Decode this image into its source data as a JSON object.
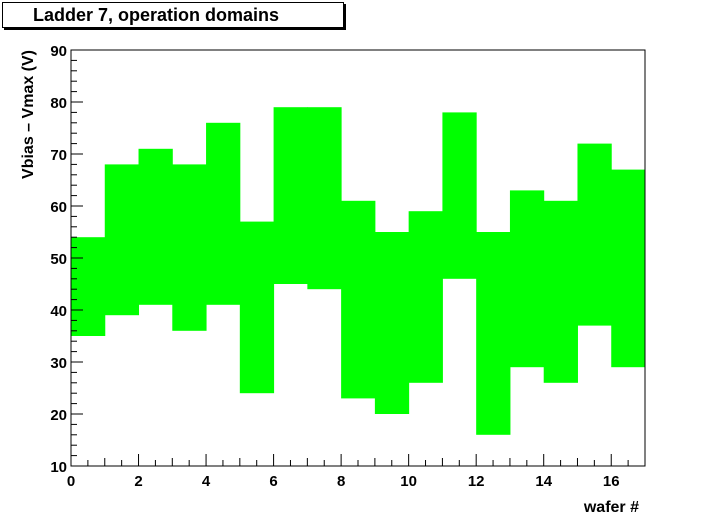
{
  "chart_data": {
    "type": "bar",
    "title": "Ladder  7, operation domains",
    "xlabel": "wafer #",
    "ylabel": "Vbias – Vmax (V)",
    "xlim": [
      0,
      17
    ],
    "ylim": [
      10,
      90
    ],
    "x_ticks": [
      0,
      2,
      4,
      6,
      8,
      10,
      12,
      14,
      16
    ],
    "y_ticks": [
      10,
      20,
      30,
      40,
      50,
      60,
      70,
      80,
      90
    ],
    "grid": false,
    "fill_color": "#00ff00",
    "series": [
      {
        "wafer": [
          0,
          1,
          2,
          3,
          4,
          5,
          6,
          7,
          8,
          9,
          10,
          11,
          12,
          13,
          14,
          15,
          16
        ],
        "low": [
          35,
          39,
          41,
          36,
          41,
          24,
          45,
          44,
          23,
          20,
          26,
          46,
          16,
          29,
          26,
          37,
          29
        ],
        "high": [
          54,
          68,
          71,
          68,
          76,
          57,
          79,
          79,
          61,
          55,
          59,
          78,
          55,
          63,
          61,
          72,
          67
        ]
      }
    ]
  }
}
